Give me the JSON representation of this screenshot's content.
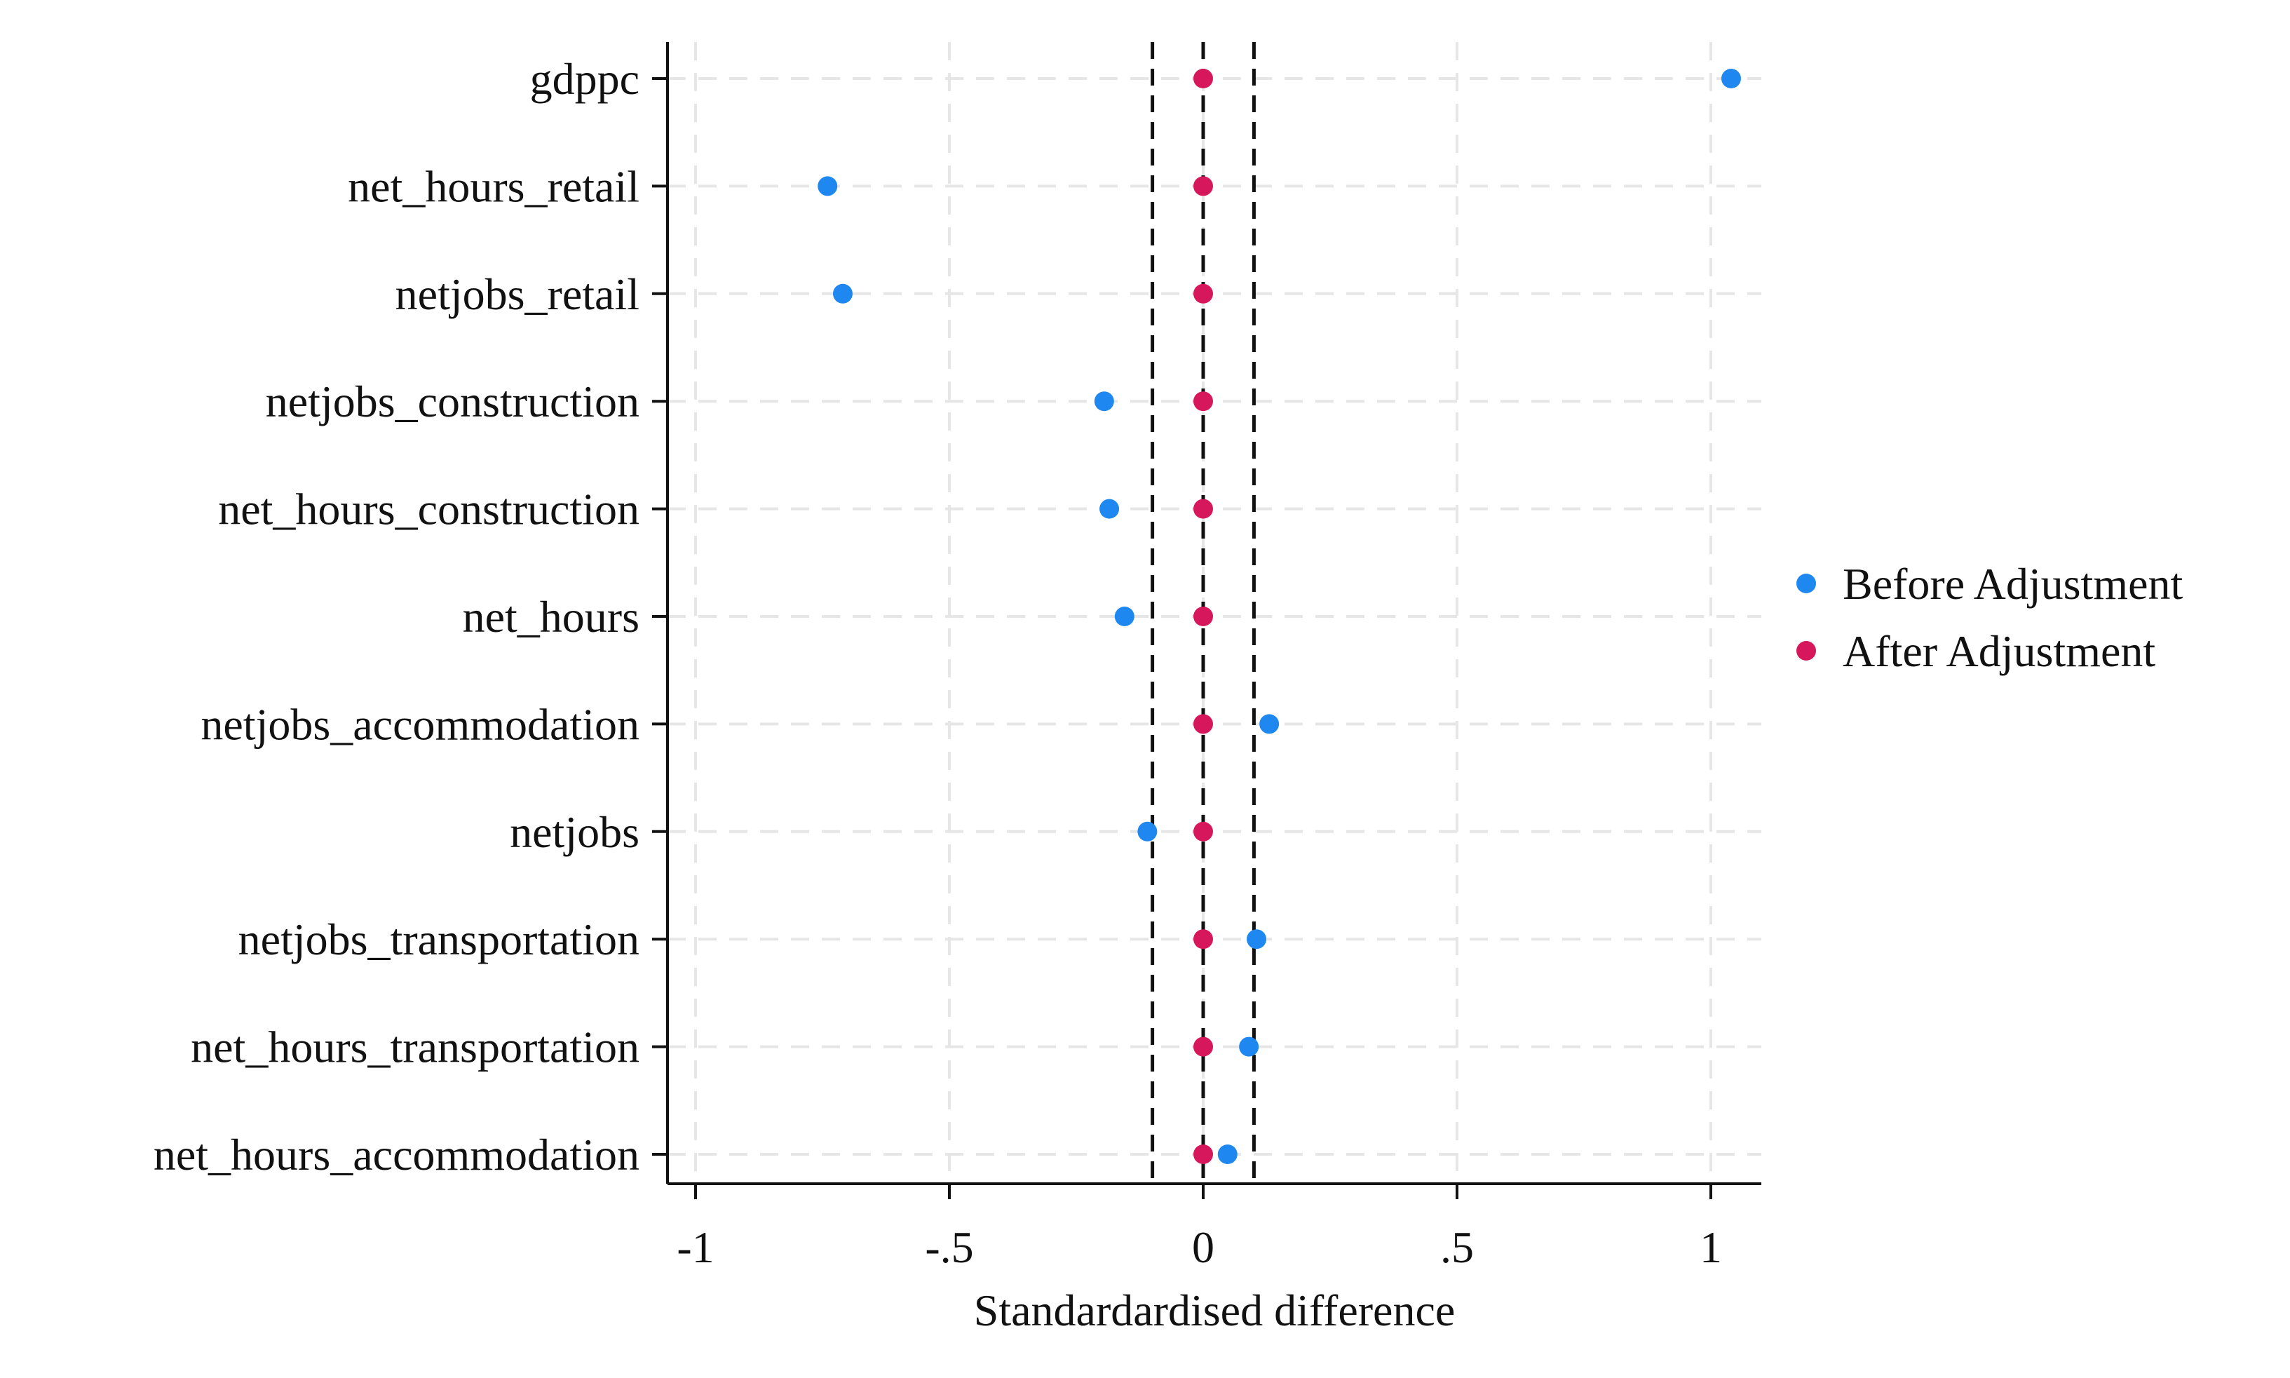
{
  "chart_data": {
    "type": "scatter",
    "title": "",
    "xlabel": "Standardardised difference",
    "ylabel": "",
    "xlim": [
      -1.06,
      1.1
    ],
    "x_ticks": [
      -1,
      -0.5,
      0,
      0.5,
      1
    ],
    "x_tick_labels": [
      "-1",
      "-.5",
      "0",
      ".5",
      "1"
    ],
    "reference_lines": [
      -0.1,
      0,
      0.1
    ],
    "grid": true,
    "legend_position": "right",
    "categories": [
      "gdppc",
      "net_hours_retail",
      "netjobs_retail",
      "netjobs_construction",
      "net_hours_construction",
      "net_hours",
      "netjobs_accommodation",
      "netjobs",
      "netjobs_transportation",
      "net_hours_transportation",
      "net_hours_accommodation"
    ],
    "series": [
      {
        "name": "Before Adjustment",
        "color": "#1e88f0",
        "values": [
          1.04,
          -0.74,
          -0.71,
          -0.195,
          -0.185,
          -0.155,
          0.13,
          -0.11,
          0.105,
          0.09,
          0.048
        ]
      },
      {
        "name": "After Adjustment",
        "color": "#d6175c",
        "values": [
          0,
          0,
          0,
          0,
          0,
          0,
          0,
          0,
          0,
          0,
          0
        ]
      }
    ]
  }
}
